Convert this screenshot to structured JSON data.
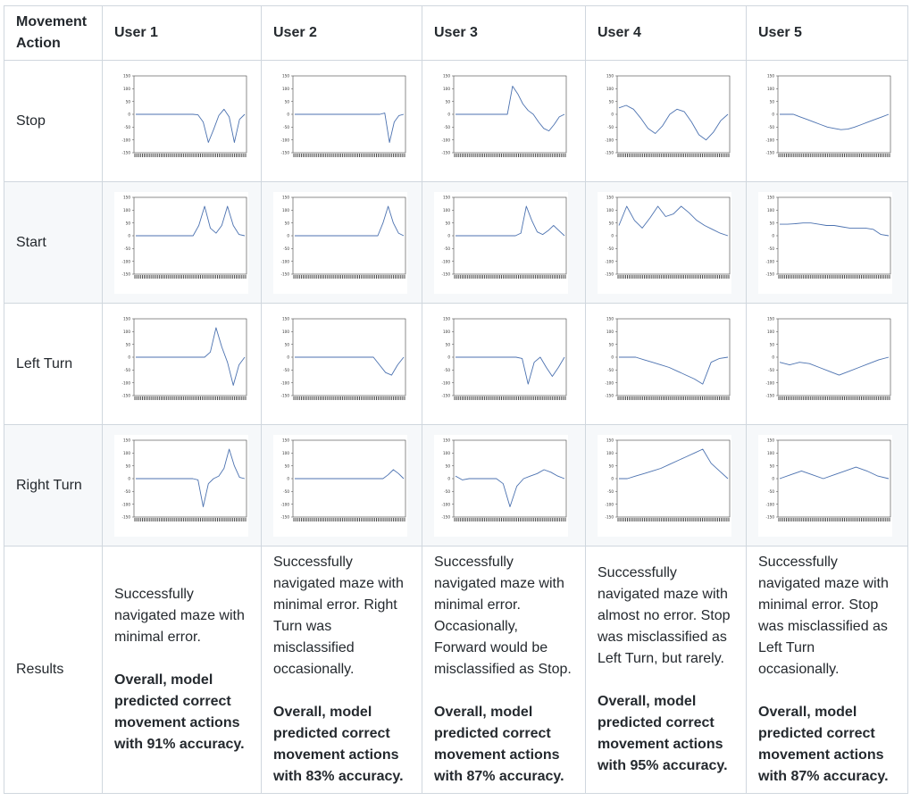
{
  "header": {
    "corner": "Movement Action",
    "users": [
      "User 1",
      "User 2",
      "User 3",
      "User 4",
      "User 5"
    ]
  },
  "rows": [
    {
      "label": "Stop"
    },
    {
      "label": "Start"
    },
    {
      "label": "Left Turn"
    },
    {
      "label": "Right Turn"
    }
  ],
  "results": {
    "label": "Results",
    "cells": [
      {
        "text": "Successfully navigated maze with minimal error.",
        "summary": "Overall, model predicted correct movement actions with 91% accuracy."
      },
      {
        "text": "Successfully navigated maze with minimal error. Right Turn was misclassified occasionally.",
        "summary": "Overall, model predicted correct movement actions with 83% accuracy."
      },
      {
        "text": "Successfully navigated maze with minimal error. Occasionally, Forward would be misclassified as Stop.",
        "summary": "Overall, model predicted correct movement actions with 87% accuracy."
      },
      {
        "text": "Successfully navigated maze with almost no error. Stop was misclassified as Left Turn, but rarely.",
        "summary": "Overall, model predicted correct movement actions with 95% accuracy."
      },
      {
        "text": "Successfully navigated maze with minimal error. Stop was misclassified as Left Turn occasionally.",
        "summary": "Overall, model predicted correct movement actions with 87% accuracy."
      }
    ]
  },
  "chart_data": {
    "type": "line",
    "ylim": [
      -150,
      150
    ],
    "yticks": [
      150,
      100,
      50,
      0,
      -50,
      -100,
      -150
    ],
    "color": "#4c72b0",
    "charts": [
      [
        {
          "y": [
            0,
            0,
            0,
            0,
            0,
            0,
            0,
            0,
            0,
            0,
            0,
            0,
            -2,
            -30,
            -110,
            -60,
            -5,
            20,
            -10,
            -110,
            -20,
            0
          ]
        },
        {
          "y": [
            0,
            0,
            0,
            0,
            0,
            0,
            0,
            0,
            0,
            0,
            0,
            0,
            0,
            0,
            0,
            0,
            0,
            0,
            0,
            5,
            -110,
            -30,
            -5,
            0
          ]
        },
        {
          "y": [
            0,
            0,
            0,
            0,
            0,
            0,
            0,
            0,
            0,
            0,
            0,
            110,
            80,
            40,
            15,
            0,
            -30,
            -55,
            -65,
            -40,
            -10,
            0
          ]
        },
        {
          "y": [
            25,
            35,
            20,
            -15,
            -55,
            -75,
            -45,
            0,
            20,
            10,
            -30,
            -80,
            -100,
            -70,
            -25,
            0
          ]
        },
        {
          "y": [
            0,
            0,
            0,
            -10,
            -20,
            -30,
            -40,
            -50,
            -55,
            -60,
            -58,
            -50,
            -40,
            -30,
            -20,
            -10,
            0
          ]
        }
      ],
      [
        {
          "y": [
            0,
            0,
            0,
            0,
            0,
            0,
            0,
            0,
            0,
            0,
            0,
            40,
            115,
            30,
            10,
            40,
            115,
            40,
            5,
            0
          ]
        },
        {
          "y": [
            0,
            0,
            0,
            0,
            0,
            0,
            0,
            0,
            0,
            0,
            0,
            0,
            0,
            0,
            0,
            0,
            0,
            50,
            115,
            50,
            10,
            0
          ]
        },
        {
          "y": [
            0,
            0,
            0,
            0,
            0,
            0,
            0,
            0,
            0,
            0,
            0,
            0,
            10,
            115,
            60,
            15,
            5,
            20,
            40,
            20,
            0
          ]
        },
        {
          "y": [
            40,
            115,
            60,
            30,
            70,
            115,
            75,
            85,
            115,
            90,
            60,
            40,
            25,
            10,
            0
          ]
        },
        {
          "y": [
            45,
            45,
            47,
            50,
            50,
            45,
            40,
            40,
            35,
            30,
            30,
            30,
            25,
            5,
            0
          ]
        }
      ],
      [
        {
          "y": [
            0,
            0,
            0,
            0,
            0,
            0,
            0,
            0,
            0,
            0,
            0,
            0,
            0,
            20,
            115,
            40,
            -20,
            -110,
            -30,
            0
          ]
        },
        {
          "y": [
            0,
            0,
            0,
            0,
            0,
            0,
            0,
            0,
            0,
            0,
            0,
            0,
            0,
            0,
            -30,
            -60,
            -70,
            -30,
            0
          ]
        },
        {
          "y": [
            0,
            0,
            0,
            0,
            0,
            0,
            0,
            0,
            0,
            0,
            0,
            -5,
            -105,
            -20,
            0,
            -40,
            -75,
            -40,
            0
          ]
        },
        {
          "y": [
            0,
            0,
            0,
            -10,
            -20,
            -30,
            -40,
            -55,
            -70,
            -85,
            -105,
            -20,
            -5,
            0
          ]
        },
        {
          "y": [
            -20,
            -30,
            -20,
            -25,
            -40,
            -55,
            -70,
            -55,
            -40,
            -25,
            -10,
            0
          ]
        }
      ],
      [
        {
          "y": [
            0,
            0,
            0,
            0,
            0,
            0,
            0,
            0,
            0,
            0,
            0,
            0,
            -5,
            -110,
            -20,
            0,
            10,
            40,
            115,
            50,
            5,
            0
          ]
        },
        {
          "y": [
            0,
            0,
            0,
            0,
            0,
            0,
            0,
            0,
            0,
            0,
            0,
            0,
            0,
            0,
            0,
            0,
            0,
            0,
            15,
            35,
            20,
            0
          ]
        },
        {
          "y": [
            10,
            -5,
            0,
            0,
            0,
            0,
            0,
            -20,
            -110,
            -30,
            0,
            10,
            20,
            35,
            25,
            10,
            0
          ]
        },
        {
          "y": [
            0,
            0,
            10,
            20,
            30,
            40,
            55,
            70,
            85,
            100,
            115,
            60,
            30,
            0
          ]
        },
        {
          "y": [
            0,
            15,
            30,
            15,
            0,
            15,
            30,
            45,
            30,
            10,
            0
          ]
        }
      ]
    ]
  }
}
